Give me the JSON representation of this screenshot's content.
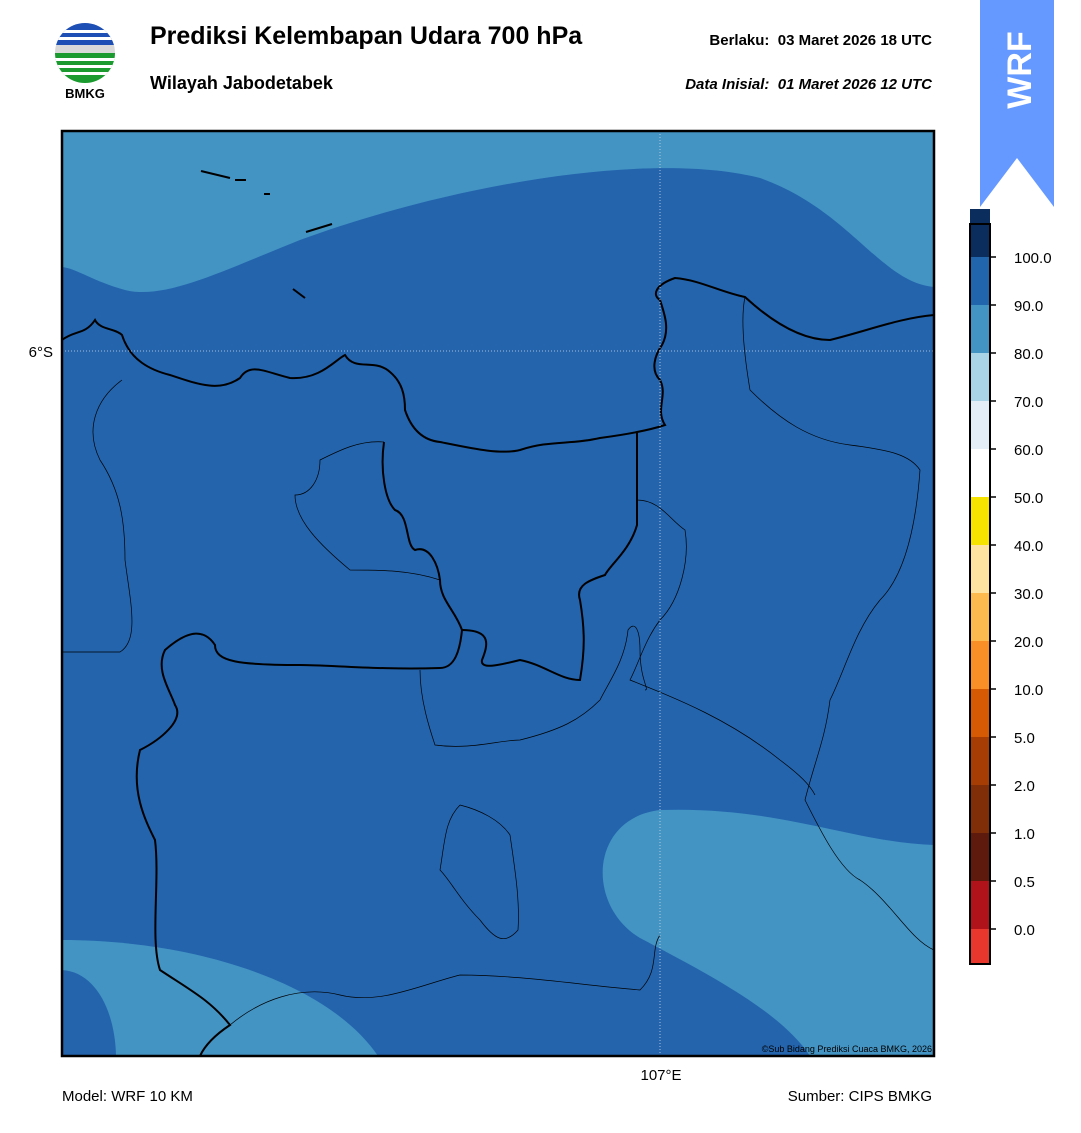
{
  "header": {
    "title": "Prediksi Kelembapan Udara 700 hPa",
    "subtitle": "Wilayah Jabodetabek",
    "valid": "Berlaku:  03 Maret 2026 18 UTC",
    "init": "Data Inisial:  01 Maret 2026 12 UTC"
  },
  "logo": {
    "text": "BMKG"
  },
  "badge": {
    "text": "WRF"
  },
  "map": {
    "lat_label": "6°S",
    "lon_label": "107°E",
    "credit": "©Sub Bidang Prediksi Cuaca BMKG, 2026"
  },
  "colorbar": {
    "labels": [
      "0.0",
      "0.5",
      "1.0",
      "2.0",
      "5.0",
      "10.0",
      "20.0",
      "30.0",
      "40.0",
      "50.0",
      "60.0",
      "70.0",
      "80.0",
      "90.0",
      "100.0"
    ],
    "colors": [
      "#e8372c",
      "#b0141a",
      "#5e1a0c",
      "#7f2e08",
      "#a63d04",
      "#d65a04",
      "#f98f26",
      "#fdba4f",
      "#fee3a0",
      "#f7e300",
      "#ffffff",
      "#e4eef6",
      "#a9d3e6",
      "#4393c3",
      "#2166ac",
      "#0b2d5e",
      "#2d0a4e"
    ]
  },
  "footer": {
    "model": "Model: WRF 10 KM",
    "source": "Sumber: CIPS BMKG"
  }
}
